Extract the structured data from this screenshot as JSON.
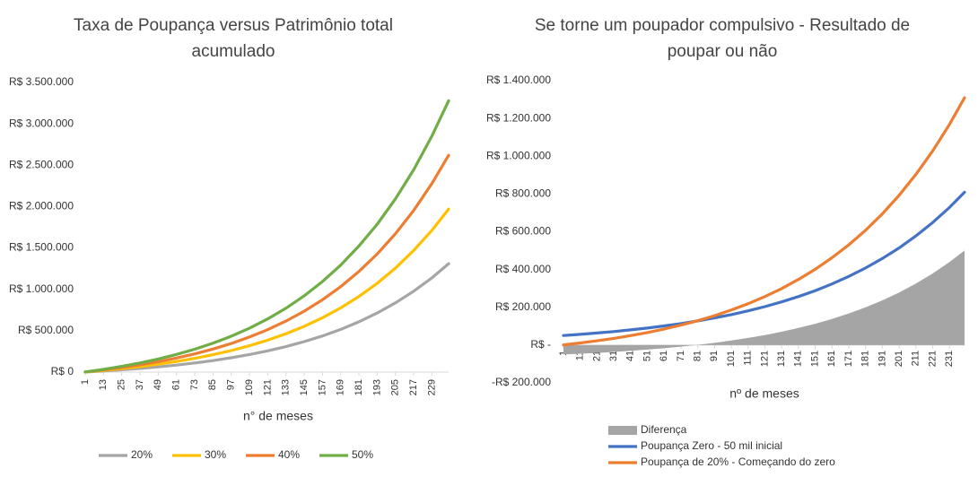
{
  "chart_data": [
    {
      "type": "line",
      "title": "Taxa de Poupança versus Patrimônio total acumulado",
      "x_label": "n° de meses",
      "x": [
        1,
        13,
        25,
        37,
        49,
        61,
        73,
        85,
        97,
        109,
        121,
        133,
        145,
        157,
        169,
        181,
        193,
        205,
        217,
        229,
        240
      ],
      "xlim": [
        1,
        240
      ],
      "xticks": [
        1,
        13,
        25,
        37,
        49,
        61,
        73,
        85,
        97,
        109,
        121,
        133,
        145,
        157,
        169,
        181,
        193,
        205,
        217,
        229
      ],
      "ylim": [
        0,
        3500000
      ],
      "yticks": [
        {
          "value": 0,
          "label": "R$ 0"
        },
        {
          "value": 500000,
          "label": "R$ 500.000"
        },
        {
          "value": 1000000,
          "label": "R$ 1.000.000"
        },
        {
          "value": 1500000,
          "label": "R$ 1.500.000"
        },
        {
          "value": 2000000,
          "label": "R$ 2.000.000"
        },
        {
          "value": 2500000,
          "label": "R$ 2.500.000"
        },
        {
          "value": 3000000,
          "label": "R$ 3.000.000"
        },
        {
          "value": 3500000,
          "label": "R$ 3.500.000"
        }
      ],
      "legend": "bottom",
      "series": [
        {
          "name": "20%",
          "color": "#a5a5a5",
          "values": [
            1000,
            13000,
            28000,
            44000,
            63000,
            85000,
            110000,
            139000,
            173000,
            212000,
            257000,
            308000,
            368000,
            437000,
            516000,
            608000,
            714000,
            836000,
            977000,
            1139000,
            1310000
          ]
        },
        {
          "name": "30%",
          "color": "#ffc000",
          "values": [
            1000,
            20000,
            41000,
            66000,
            95000,
            128000,
            166000,
            210000,
            260000,
            319000,
            386000,
            464000,
            553000,
            657000,
            776000,
            914000,
            1073000,
            1257000,
            1469000,
            1713000,
            1970000
          ]
        },
        {
          "name": "40%",
          "color": "#ed7d31",
          "values": [
            2000,
            27000,
            55000,
            88000,
            126000,
            170000,
            220000,
            279000,
            346000,
            424000,
            513000,
            617000,
            736000,
            874000,
            1033000,
            1216000,
            1427000,
            1672000,
            1953000,
            2279000,
            2620000
          ]
        },
        {
          "name": "50%",
          "color": "#70ad47",
          "values": [
            2000,
            33000,
            69000,
            110000,
            158000,
            213000,
            276000,
            349000,
            433000,
            530000,
            643000,
            772000,
            921000,
            1094000,
            1293000,
            1523000,
            1787000,
            2093000,
            2445000,
            2853000,
            3280000
          ]
        }
      ]
    },
    {
      "type": "line",
      "title": "Se torne um poupador compulsivo - Resultado de poupar ou não",
      "x_label": "nº de meses",
      "x": [
        1,
        11,
        21,
        31,
        41,
        51,
        61,
        71,
        81,
        91,
        101,
        111,
        121,
        131,
        141,
        151,
        161,
        171,
        181,
        191,
        201,
        211,
        221,
        231,
        240
      ],
      "xlim": [
        1,
        240
      ],
      "xticks": [
        1,
        11,
        21,
        31,
        41,
        51,
        61,
        71,
        81,
        91,
        101,
        111,
        121,
        131,
        141,
        151,
        161,
        171,
        181,
        191,
        201,
        211,
        221,
        231
      ],
      "ylim": [
        -200000,
        1400000
      ],
      "yticks": [
        {
          "value": -200000,
          "label": "-R$ 200.000"
        },
        {
          "value": 0,
          "label": "R$ -"
        },
        {
          "value": 200000,
          "label": "R$ 200.000"
        },
        {
          "value": 400000,
          "label": "R$ 400.000"
        },
        {
          "value": 600000,
          "label": "R$ 600.000"
        },
        {
          "value": 800000,
          "label": "R$ 800.000"
        },
        {
          "value": 1000000,
          "label": "R$ 1.000.000"
        },
        {
          "value": 1200000,
          "label": "R$ 1.200.000"
        },
        {
          "value": 1400000,
          "label": "R$ 1.400.000"
        }
      ],
      "legend": "bottom",
      "series": [
        {
          "name": "Diferença",
          "type": "area",
          "color": "#a5a5a5",
          "values": [
            -49600,
            -45700,
            -41200,
            -36100,
            -30500,
            -23900,
            -16600,
            -8200,
            1200,
            11600,
            23900,
            37700,
            53100,
            70700,
            90600,
            113000,
            138500,
            167300,
            199900,
            236700,
            278400,
            325700,
            379200,
            439600,
            500800
          ]
        },
        {
          "name": "Poupança Zero - 50 mil inicial",
          "color": "#4472c4",
          "values": [
            50600,
            56800,
            63800,
            71600,
            80500,
            90300,
            101500,
            113900,
            127900,
            144000,
            161400,
            181200,
            203500,
            228500,
            256600,
            288200,
            323600,
            363400,
            408100,
            458300,
            514700,
            578000,
            649100,
            728900,
            809200
          ]
        },
        {
          "name": "Poupança de 20% - Começando do zero",
          "color": "#ed7d31",
          "values": [
            1000,
            11100,
            22600,
            35500,
            50000,
            66400,
            84900,
            105700,
            129100,
            155600,
            185300,
            218900,
            256600,
            299200,
            347200,
            401200,
            462100,
            530700,
            608000,
            695000,
            793100,
            903700,
            1028300,
            1168500,
            1310000
          ]
        }
      ]
    }
  ]
}
